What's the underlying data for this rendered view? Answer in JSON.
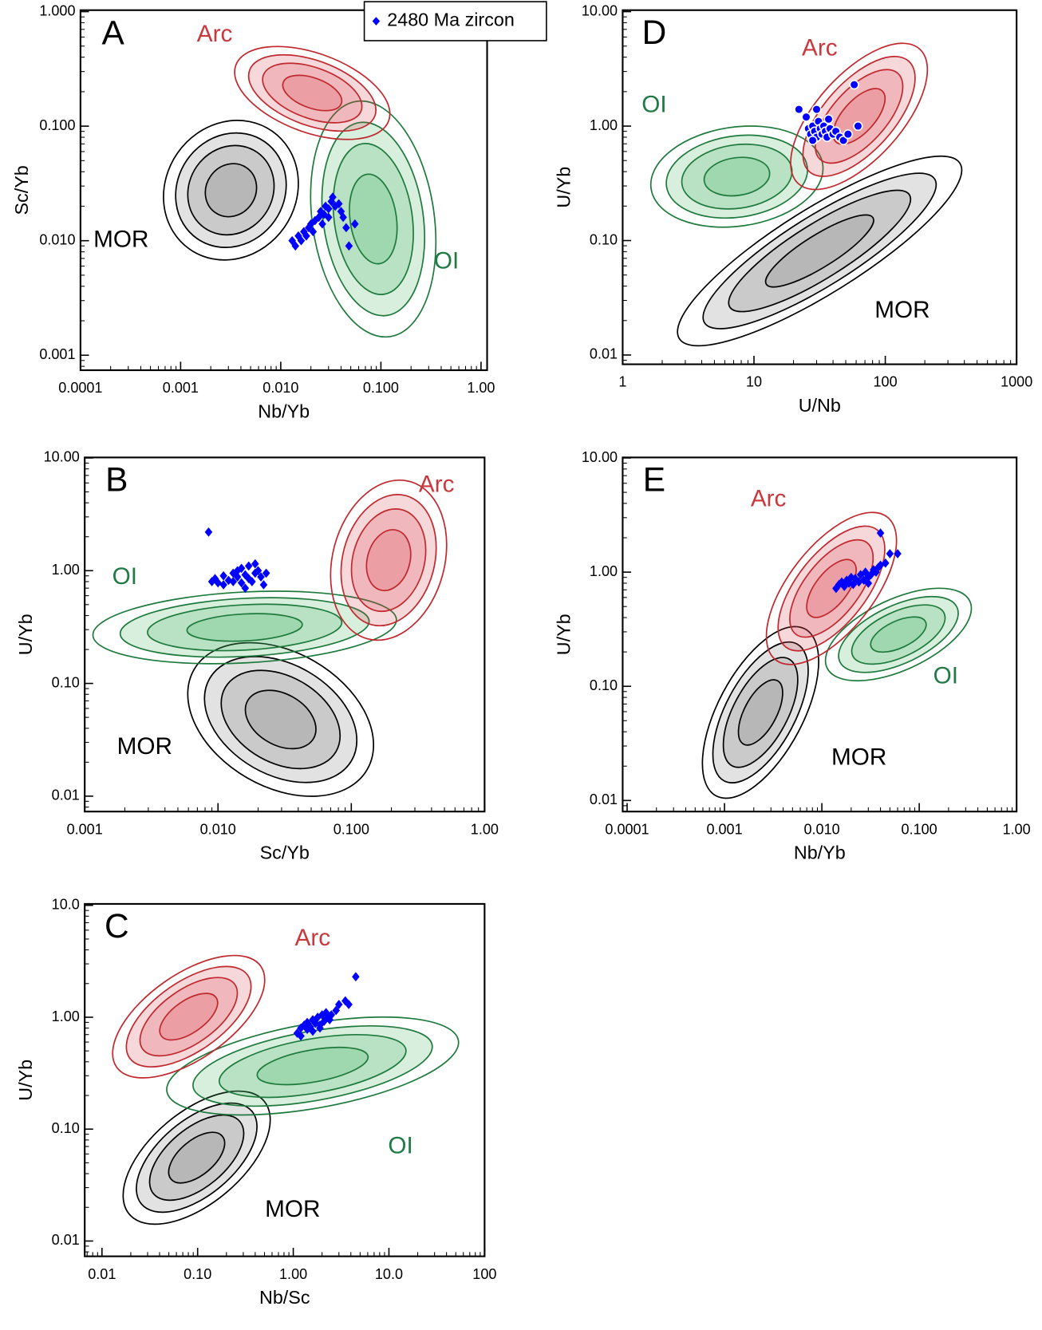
{
  "chart_data": [
    {
      "type": "scatter",
      "panel": "A",
      "xlabel": "Nb/Yb",
      "ylabel": "Sc/Yb",
      "xscale": "log",
      "yscale": "log",
      "xlim": [
        0.0001,
        1.15
      ],
      "ylim": [
        0.00074,
        1.03
      ],
      "xticks": [
        0.0001,
        0.001,
        {
          "value": 0.01,
          "label": "0.010"
        },
        {
          "value": 0.1,
          "label": "0.100"
        },
        {
          "value": 1,
          "label": "1.00"
        }
      ],
      "yticks": [
        {
          "value": 1,
          "label": "1.000"
        },
        {
          "value": 0.1,
          "label": "0.100"
        },
        {
          "value": 0.01,
          "label": "0.010"
        },
        0.001
      ],
      "annotations": [
        "Arc",
        "OI",
        "MOR"
      ],
      "legend": true,
      "marker": "diamond",
      "series": [
        {
          "name": "2480 Ma zircon",
          "color": "#0000ff",
          "x": [
            0.013,
            0.014,
            0.015,
            0.016,
            0.017,
            0.018,
            0.019,
            0.02,
            0.021,
            0.022,
            0.024,
            0.025,
            0.027,
            0.028,
            0.03,
            0.032,
            0.033,
            0.035,
            0.038,
            0.04,
            0.042,
            0.045,
            0.048,
            0.055,
            0.03,
            0.026
          ],
          "values": [
            0.01,
            0.009,
            0.011,
            0.01,
            0.012,
            0.011,
            0.013,
            0.014,
            0.012,
            0.015,
            0.016,
            0.018,
            0.017,
            0.02,
            0.019,
            0.022,
            0.024,
            0.02,
            0.021,
            0.018,
            0.016,
            0.013,
            0.009,
            0.014,
            0.016,
            0.014
          ]
        }
      ]
    },
    {
      "type": "scatter",
      "panel": "B",
      "xlabel": "Sc/Yb",
      "ylabel": "U/Yb",
      "xscale": "log",
      "yscale": "log",
      "xlim": [
        0.001,
        1.0
      ],
      "ylim": [
        0.0073,
        10.1
      ],
      "xticks": [
        0.001,
        {
          "value": 0.01,
          "label": "0.010"
        },
        {
          "value": 0.1,
          "label": "0.100"
        },
        {
          "value": 1,
          "label": "1.00"
        }
      ],
      "yticks": [
        {
          "value": 10,
          "label": "10.00"
        },
        {
          "value": 1,
          "label": "1.00"
        },
        {
          "value": 0.1,
          "label": "0.10"
        },
        0.01
      ],
      "annotations": [
        "Arc",
        "OI",
        "MOR"
      ],
      "marker": "diamond",
      "series": [
        {
          "color": "#0000ff",
          "x": [
            0.009,
            0.0095,
            0.01,
            0.011,
            0.011,
            0.012,
            0.013,
            0.013,
            0.014,
            0.015,
            0.015,
            0.016,
            0.017,
            0.017,
            0.018,
            0.019,
            0.02,
            0.021,
            0.022,
            0.023,
            0.014,
            0.016,
            0.019,
            0.0085
          ],
          "values": [
            0.8,
            0.85,
            0.78,
            0.9,
            0.75,
            0.82,
            0.95,
            0.8,
            0.88,
            0.78,
            1.05,
            0.92,
            0.85,
            1.1,
            0.8,
            0.95,
            1.0,
            0.88,
            0.75,
            0.95,
            1.0,
            0.7,
            1.15,
            2.2
          ]
        }
      ]
    },
    {
      "type": "scatter",
      "panel": "C",
      "xlabel": "Nb/Sc",
      "ylabel": "U/Yb",
      "xscale": "log",
      "yscale": "log",
      "xlim": [
        0.0066,
        100
      ],
      "ylim": [
        0.0073,
        10.3
      ],
      "xticks": [
        0.01,
        {
          "value": 0.1,
          "label": "0.10"
        },
        {
          "value": 1,
          "label": "1.00"
        },
        {
          "value": 10,
          "label": "10.0"
        },
        100
      ],
      "yticks": [
        {
          "value": 10,
          "label": "10.0"
        },
        {
          "value": 1,
          "label": "1.00"
        },
        {
          "value": 0.1,
          "label": "0.10"
        },
        0.01
      ],
      "annotations": [
        "Arc",
        "OI",
        "MOR"
      ],
      "marker": "diamond",
      "series": [
        {
          "color": "#0000ff",
          "x": [
            1.1,
            1.2,
            1.2,
            1.3,
            1.4,
            1.4,
            1.5,
            1.6,
            1.6,
            1.7,
            1.8,
            1.9,
            2.0,
            2.1,
            2.2,
            2.3,
            2.5,
            2.8,
            3.0,
            3.5,
            3.8,
            4.5,
            1.9,
            2.4
          ],
          "values": [
            0.72,
            0.8,
            0.68,
            0.85,
            0.78,
            0.9,
            0.82,
            0.95,
            0.75,
            0.88,
            1.0,
            0.85,
            1.05,
            0.92,
            1.1,
            1.0,
            1.05,
            1.15,
            1.3,
            1.4,
            1.3,
            2.3,
            0.8,
            0.95
          ]
        }
      ]
    },
    {
      "type": "scatter",
      "panel": "D",
      "xlabel": "U/Nb",
      "ylabel": "U/Yb",
      "xscale": "log",
      "yscale": "log",
      "xlim": [
        1,
        1000
      ],
      "ylim": [
        0.0083,
        10.3
      ],
      "xticks": [
        1,
        10,
        100,
        1000
      ],
      "yticks": [
        {
          "value": 10,
          "label": "10.00"
        },
        {
          "value": 1,
          "label": "1.00"
        },
        {
          "value": 0.1,
          "label": "0.10"
        },
        0.01
      ],
      "annotations": [
        "Arc",
        "OI",
        "MOR"
      ],
      "marker": "circle",
      "series": [
        {
          "color": "#0000ff",
          "x": [
            22,
            25,
            26,
            27,
            28,
            29,
            30,
            31,
            32,
            33,
            34,
            35,
            36,
            38,
            40,
            42,
            45,
            48,
            52,
            58,
            62,
            30,
            28,
            37
          ],
          "values": [
            1.4,
            1.2,
            0.95,
            0.85,
            1.0,
            0.9,
            0.8,
            1.1,
            0.95,
            0.85,
            1.0,
            0.9,
            0.8,
            0.95,
            0.85,
            0.9,
            0.8,
            0.75,
            0.85,
            2.3,
            1.0,
            1.4,
            0.75,
            1.15
          ]
        }
      ]
    },
    {
      "type": "scatter",
      "panel": "E",
      "xlabel": "Nb/Yb",
      "ylabel": "U/Yb",
      "xscale": "log",
      "yscale": "log",
      "xlim": [
        9e-05,
        1.0
      ],
      "ylim": [
        0.008,
        10.1
      ],
      "xticks": [
        0.0001,
        0.001,
        {
          "value": 0.01,
          "label": "0.010"
        },
        {
          "value": 0.1,
          "label": "0.100"
        },
        {
          "value": 1,
          "label": "1.00"
        }
      ],
      "yticks": [
        {
          "value": 10,
          "label": "10.00"
        },
        {
          "value": 1,
          "label": "1.00"
        },
        {
          "value": 0.1,
          "label": "0.10"
        },
        0.01
      ],
      "annotations": [
        "Arc",
        "OI",
        "MOR"
      ],
      "marker": "diamond",
      "series": [
        {
          "color": "#0000ff",
          "x": [
            0.014,
            0.015,
            0.016,
            0.017,
            0.018,
            0.019,
            0.02,
            0.021,
            0.022,
            0.024,
            0.025,
            0.027,
            0.028,
            0.03,
            0.032,
            0.034,
            0.036,
            0.038,
            0.04,
            0.045,
            0.05,
            0.06,
            0.04,
            0.03
          ],
          "values": [
            0.72,
            0.78,
            0.82,
            0.75,
            0.85,
            0.8,
            0.9,
            0.78,
            0.88,
            0.82,
            0.95,
            0.85,
            1.0,
            0.9,
            0.95,
            1.05,
            1.0,
            1.1,
            1.15,
            1.2,
            1.45,
            1.45,
            2.2,
            0.8
          ]
        }
      ]
    }
  ]
}
